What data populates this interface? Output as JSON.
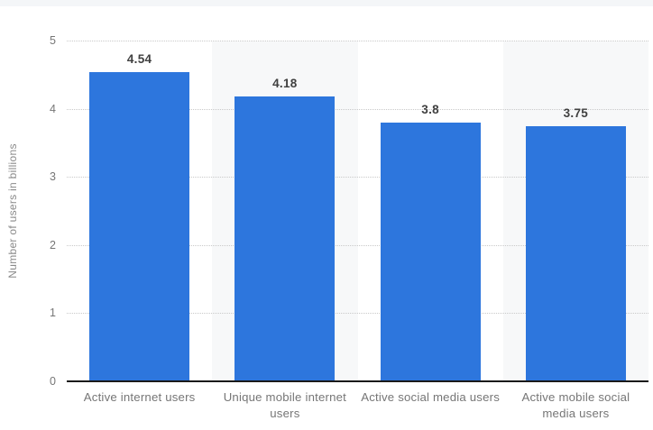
{
  "page": {
    "top_strip_color": "#f4f6f8",
    "background_color": "#ffffff"
  },
  "chart_data": {
    "type": "bar",
    "title": "",
    "xlabel": "",
    "ylabel": "Number of users in billions",
    "categories": [
      "Active internet users",
      "Unique mobile internet users",
      "Active social media users",
      "Active mobile social media users"
    ],
    "values": [
      4.54,
      4.18,
      3.8,
      3.75
    ],
    "value_labels": [
      "4.54",
      "4.18",
      "3.8",
      "3.75"
    ],
    "y_ticks": [
      0,
      1,
      2,
      3,
      4,
      5
    ],
    "ylim": [
      0,
      5
    ],
    "grid": "horizontal-dotted",
    "legend_position": "none",
    "colors": {
      "bar": "#2d76dd",
      "column_band": "#f7f8f9",
      "band_pattern": [
        "#ffffff",
        "#f7f8f9",
        "#ffffff",
        "#f7f8f9"
      ],
      "gridline": "#c9c9c9",
      "axis_line": "#1a1a1a",
      "tick_label": "#767676",
      "category_label": "#767676",
      "value_label": "#404040",
      "y_axis_title": "#8a8a8a"
    }
  }
}
